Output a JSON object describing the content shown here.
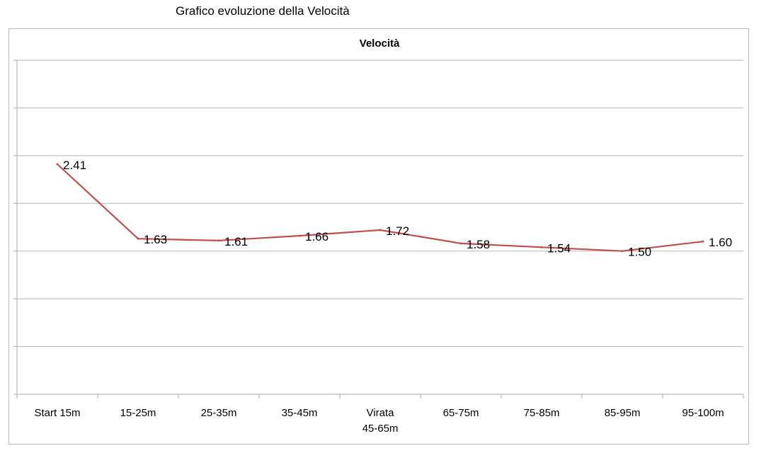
{
  "page": {
    "title": "Grafico evoluzione della Velocità"
  },
  "chart_data": {
    "type": "line",
    "title": "Velocità",
    "xlabel": "",
    "ylabel": "",
    "categories": [
      [
        "Start 15m"
      ],
      [
        "15-25m"
      ],
      [
        "25-35m"
      ],
      [
        "35-45m"
      ],
      [
        "Virata",
        "45-65m"
      ],
      [
        "65-75m"
      ],
      [
        "75-85m"
      ],
      [
        "85-95m"
      ],
      [
        "95-100m"
      ]
    ],
    "series": [
      {
        "values": [
          2.41,
          1.63,
          1.61,
          1.66,
          1.72,
          1.58,
          1.54,
          1.5,
          1.6
        ],
        "labels": [
          "2.41",
          "1.63",
          "1.61",
          "1.66",
          "1.72",
          "1.58",
          "1.54",
          "1.50",
          "1.60"
        ],
        "color": "#c0504d"
      }
    ],
    "ylim": [
      0,
      3.5
    ],
    "gridlines": [
      0.5,
      1.0,
      1.5,
      2.0,
      2.5,
      3.0,
      3.5
    ],
    "grid": true,
    "y_tick_labels_shown": false,
    "legend": "none",
    "colors": {
      "grid": "#b5b5b5",
      "axis": "#a8a8a8",
      "line": "#c0504d"
    }
  }
}
